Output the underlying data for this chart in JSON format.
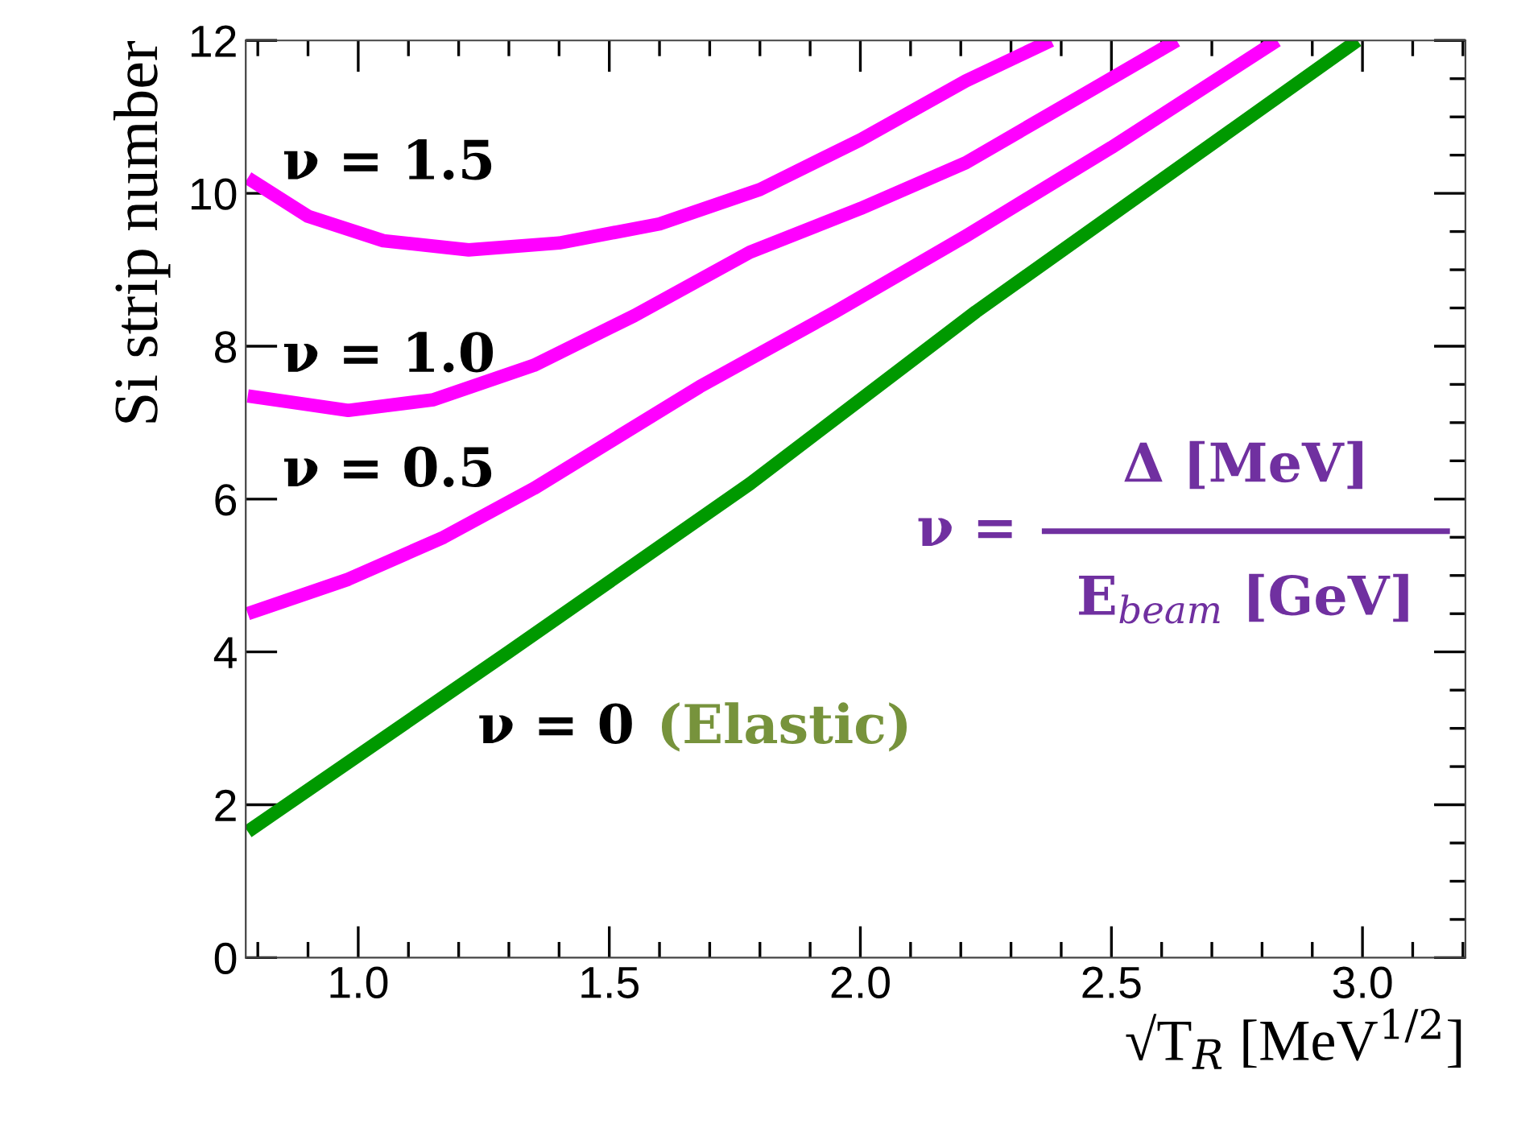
{
  "chart_data": {
    "type": "line",
    "xlabel": "√T$_{R}$ [MeV$^{1/2}$]",
    "ylabel": "Si strip number",
    "xlim": [
      0.776,
      3.205
    ],
    "ylim": [
      0,
      12
    ],
    "xticks": [
      {
        "value": 1.0,
        "label": "1.0"
      },
      {
        "value": 1.5,
        "label": "1.5"
      },
      {
        "value": 2.0,
        "label": "2.0"
      },
      {
        "value": 2.5,
        "label": "2.5"
      },
      {
        "value": 3.0,
        "label": "3.0"
      }
    ],
    "yticks": [
      0,
      2,
      4,
      6,
      8,
      10,
      12
    ],
    "grid": false,
    "legend": false,
    "marker": "none",
    "line_style": "solid",
    "series": [
      {
        "name": "ν = 1.5",
        "color": "#ff00ff",
        "x": [
          0.78,
          0.9,
          1.05,
          1.22,
          1.4,
          1.6,
          1.8,
          2.0,
          2.21,
          2.38
        ],
        "values": [
          10.2,
          9.7,
          9.38,
          9.26,
          9.35,
          9.6,
          10.05,
          10.7,
          11.47,
          12
        ]
      },
      {
        "name": "ν = 1.0",
        "color": "#ff00ff",
        "x": [
          0.78,
          0.98,
          1.15,
          1.35,
          1.55,
          1.78,
          2.0,
          2.21,
          2.42,
          2.63
        ],
        "values": [
          7.35,
          7.16,
          7.3,
          7.75,
          8.4,
          9.23,
          9.8,
          10.4,
          11.2,
          12
        ]
      },
      {
        "name": "ν = 0.5",
        "color": "#ff00ff",
        "x": [
          0.78,
          0.98,
          1.17,
          1.35,
          1.68,
          1.95,
          2.21,
          2.5,
          2.83
        ],
        "values": [
          4.5,
          4.95,
          5.5,
          6.14,
          7.47,
          8.45,
          9.44,
          10.6,
          12
        ]
      },
      {
        "name": "ν = 0",
        "color": "#009900",
        "x": [
          0.78,
          1.3,
          1.78,
          2.23,
          2.99
        ],
        "values": [
          1.65,
          4.0,
          6.2,
          8.45,
          12
        ]
      }
    ],
    "annotations": [
      "(Elastic)",
      "ν =",
      "Δ [MeV]",
      "E$_{beam}$ [GeV]"
    ]
  }
}
